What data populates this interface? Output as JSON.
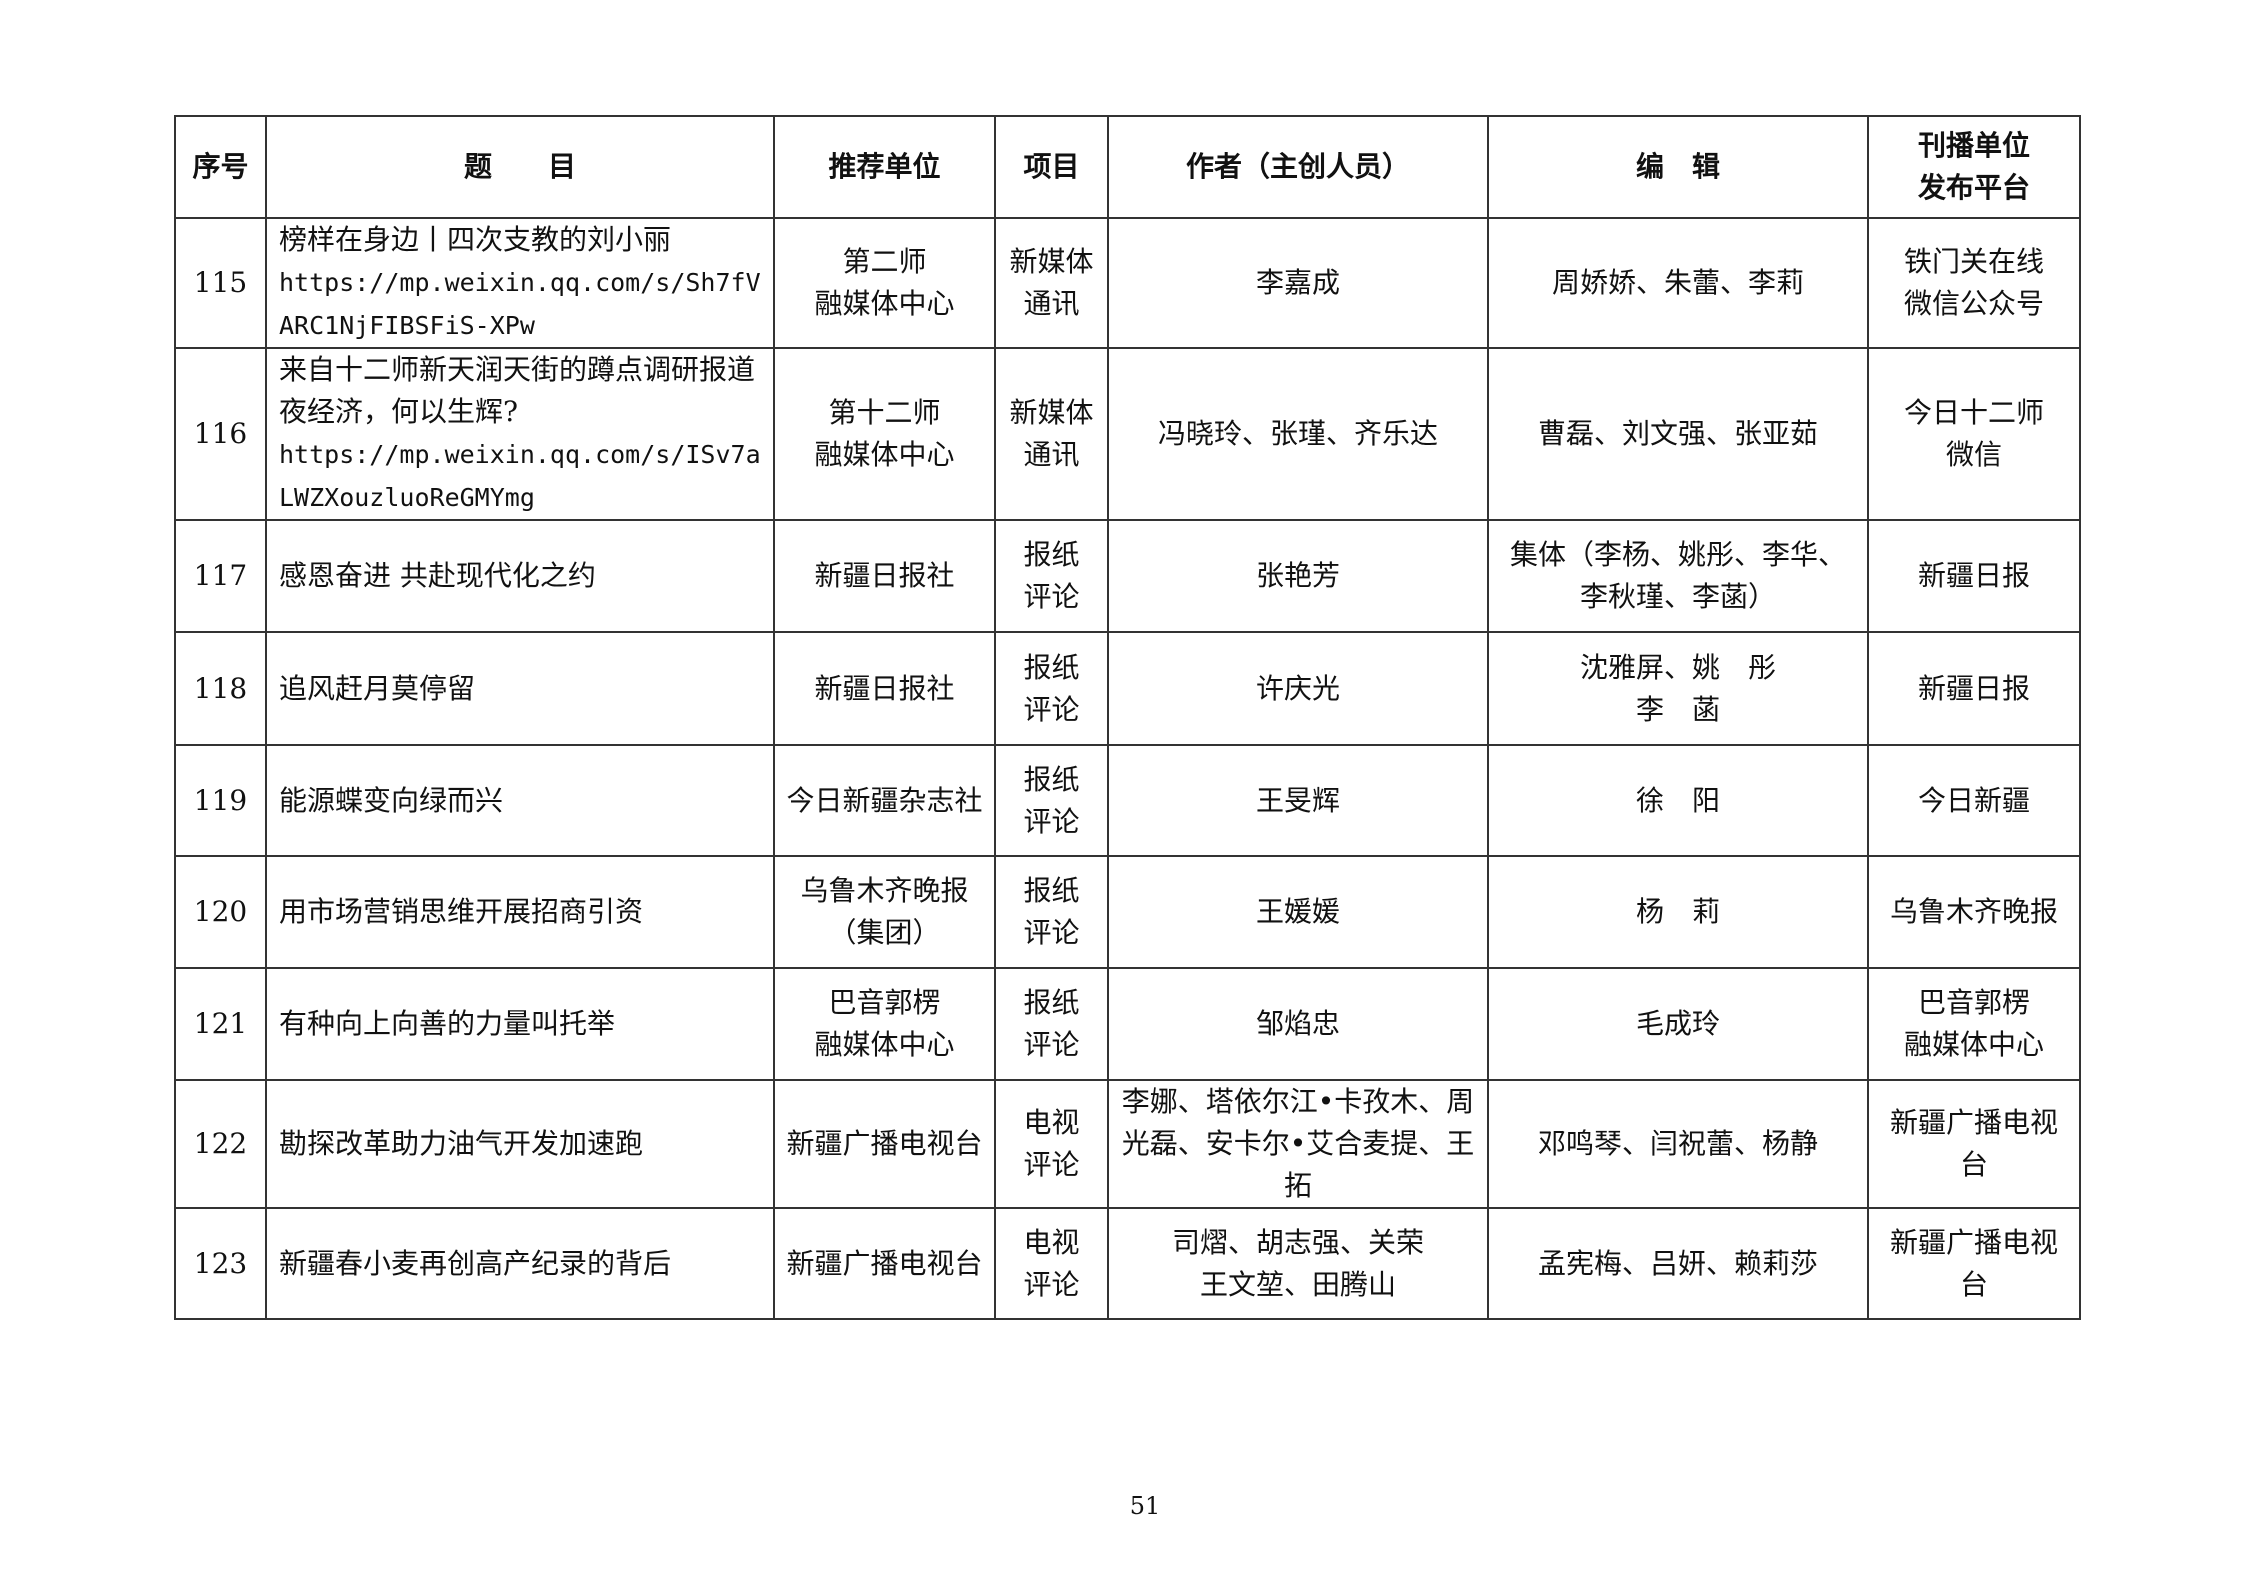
{
  "headers": [
    "序号",
    "题　　目",
    "推荐单位",
    "项目",
    "作者（主创人员）",
    "编　辑",
    "刊播单位\n发布平台"
  ],
  "rows": [
    {
      "no": "115",
      "title": "榜样在身边丨四次支教的刘小丽",
      "url": "https://mp.weixin.qq.com/s/Sh7fVARC1NjFIBSFiS-XPw",
      "unit": "第二师\n融媒体中心",
      "item": "新媒体\n通讯",
      "author": "李嘉成",
      "editor": "周娇娇、朱蕾、李莉",
      "platform": "铁门关在线\n微信公众号"
    },
    {
      "no": "116",
      "title": "来自十二师新天润天街的蹲点调研报道\n夜经济，何以生辉?",
      "url": "https://mp.weixin.qq.com/s/ISv7aLWZXouzluoReGMYmg",
      "unit": "第十二师\n融媒体中心",
      "item": "新媒体\n通讯",
      "author": "冯晓玲、张瑾、齐乐达",
      "editor": "曹磊、刘文强、张亚茹",
      "platform": "今日十二师\n微信"
    },
    {
      "no": "117",
      "title": "感恩奋进 共赴现代化之约",
      "url": "",
      "unit": "新疆日报社",
      "item": "报纸\n评论",
      "author": "张艳芳",
      "editor": "集体（李杨、姚彤、李华、李秋瑾、李菡）",
      "platform": "新疆日报"
    },
    {
      "no": "118",
      "title": "追风赶月莫停留",
      "url": "",
      "unit": "新疆日报社",
      "item": "报纸\n评论",
      "author": "许庆光",
      "editor": "沈雅屏、姚　彤\n李　菡",
      "platform": "新疆日报"
    },
    {
      "no": "119",
      "title": "能源蝶变向绿而兴",
      "url": "",
      "unit": "今日新疆杂志社",
      "item": "报纸\n评论",
      "author": "王旻辉",
      "editor": "徐　阳",
      "platform": "今日新疆"
    },
    {
      "no": "120",
      "title": "用市场营销思维开展招商引资",
      "url": "",
      "unit": "乌鲁木齐晚报\n（集团）",
      "item": "报纸\n评论",
      "author": "王媛媛",
      "editor": "杨　莉",
      "platform": "乌鲁木齐晚报"
    },
    {
      "no": "121",
      "title": "有种向上向善的力量叫托举",
      "url": "",
      "unit": "巴音郭楞\n融媒体中心",
      "item": "报纸\n评论",
      "author": "邹焰忠",
      "editor": "毛成玲",
      "platform": "巴音郭楞\n融媒体中心"
    },
    {
      "no": "122",
      "title": "勘探改革助力油气开发加速跑",
      "url": "",
      "unit": "新疆广播电视台",
      "item": "电视\n评论",
      "author": "李娜、塔依尔江•卡孜木、周光磊、安卡尔•艾合麦提、王拓",
      "editor": "邓鸣琴、闫祝蕾、杨静",
      "platform": "新疆广播电视台"
    },
    {
      "no": "123",
      "title": "新疆春小麦再创高产纪录的背后",
      "url": "",
      "unit": "新疆广播电视台",
      "item": "电视\n评论",
      "author": "司熠、胡志强、关荣\n王文堃、田腾山",
      "editor": "孟宪梅、吕妍、赖莉莎",
      "platform": "新疆广播电视台"
    }
  ],
  "page_number": "51"
}
